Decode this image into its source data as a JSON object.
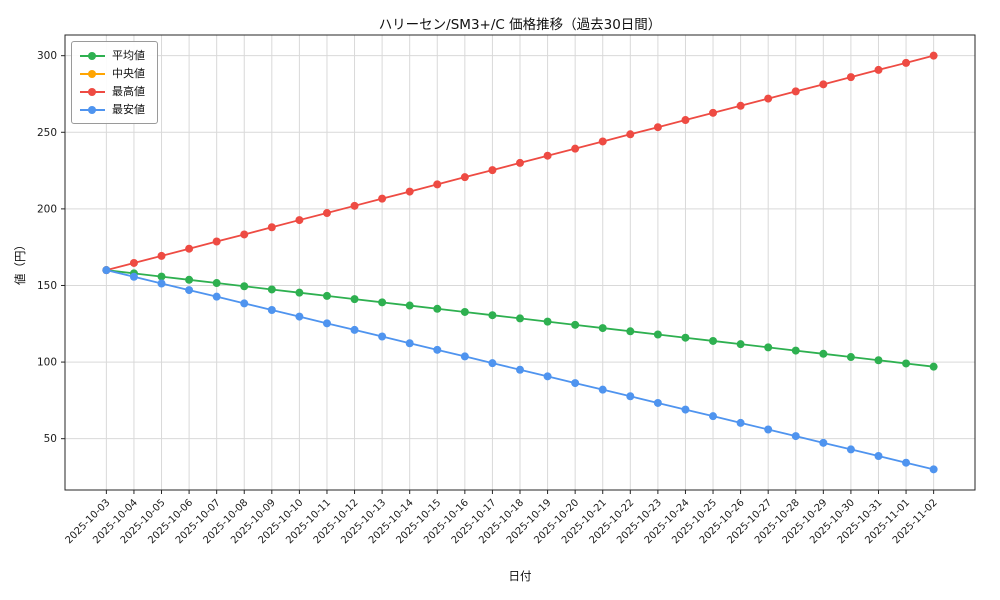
{
  "chart_data": {
    "type": "line",
    "title": "ハリーセン/SM3+/C  価格推移（過去30日間）",
    "xlabel": "日付",
    "ylabel": "値（円）",
    "grid": true,
    "grid_color": "#d9d9d9",
    "axis_color": "#262626",
    "text_color": "#1c1c1c",
    "legend_position": "upper left",
    "x_tick_rotation": 45,
    "marker": "o",
    "ylim": [
      16.5,
      313.5
    ],
    "yticks": [
      50,
      100,
      150,
      200,
      250,
      300
    ],
    "x_margin": 1.5,
    "x": [
      "2025-10-03",
      "2025-10-04",
      "2025-10-05",
      "2025-10-06",
      "2025-10-07",
      "2025-10-08",
      "2025-10-09",
      "2025-10-10",
      "2025-10-11",
      "2025-10-12",
      "2025-10-13",
      "2025-10-14",
      "2025-10-15",
      "2025-10-16",
      "2025-10-17",
      "2025-10-18",
      "2025-10-19",
      "2025-10-20",
      "2025-10-21",
      "2025-10-22",
      "2025-10-23",
      "2025-10-24",
      "2025-10-25",
      "2025-10-26",
      "2025-10-27",
      "2025-10-28",
      "2025-10-29",
      "2025-10-30",
      "2025-10-31",
      "2025-11-01",
      "2025-11-02"
    ],
    "series": [
      {
        "id": "average",
        "name": "平均値",
        "color": "#2eb050",
        "values": [
          160.0,
          157.9,
          155.8,
          153.7,
          151.6,
          149.5,
          147.4,
          145.3,
          143.2,
          141.1,
          139.0,
          136.9,
          134.8,
          132.7,
          130.6,
          128.5,
          126.4,
          124.3,
          122.2,
          120.1,
          118.0,
          115.9,
          113.8,
          111.7,
          109.6,
          107.5,
          105.4,
          103.3,
          101.2,
          99.1,
          97.0
        ]
      },
      {
        "id": "median",
        "name": "中央値",
        "color": "#ffa502",
        "values": null,
        "note": "listed in legend but not visibly distinct in the screenshot; its line is hidden behind an overlapping series"
      },
      {
        "id": "highest",
        "name": "最高値",
        "color": "#ee4b43",
        "values": [
          160.0,
          164.7,
          169.3,
          174.0,
          178.7,
          183.3,
          188.0,
          192.7,
          197.3,
          202.0,
          206.7,
          211.3,
          216.0,
          220.7,
          225.3,
          230.0,
          234.7,
          239.3,
          244.0,
          248.7,
          253.3,
          258.0,
          262.7,
          267.3,
          272.0,
          276.7,
          281.3,
          286.0,
          290.7,
          295.3,
          300.0
        ]
      },
      {
        "id": "lowest",
        "name": "最安値",
        "color": "#4f94ef",
        "values": [
          160.0,
          155.7,
          151.3,
          147.0,
          142.7,
          138.3,
          134.0,
          129.7,
          125.3,
          121.0,
          116.7,
          112.3,
          108.0,
          103.7,
          99.3,
          95.0,
          90.7,
          86.3,
          82.0,
          77.7,
          73.3,
          69.0,
          64.7,
          60.3,
          56.0,
          51.7,
          47.3,
          43.0,
          38.7,
          34.3,
          30.0
        ]
      }
    ]
  }
}
